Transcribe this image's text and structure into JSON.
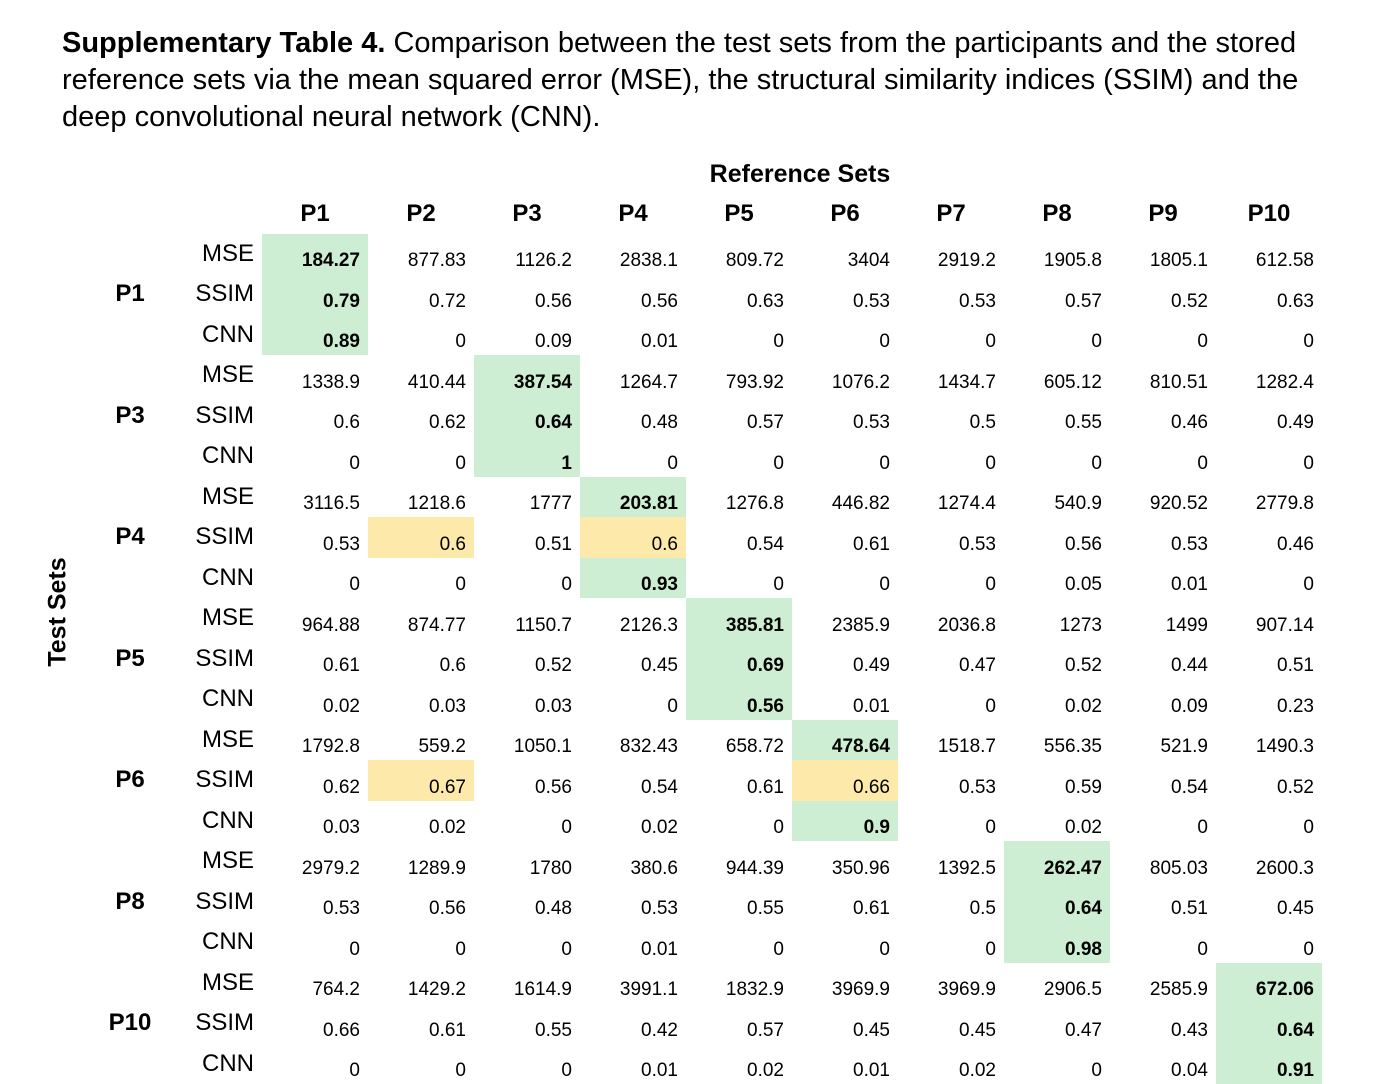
{
  "caption": {
    "label": "Supplementary Table 4.",
    "text": " Comparison between the test sets from the participants and the stored reference sets via the mean squared error (MSE), the structural similarity indices (SSIM) and the deep convolutional neural network (CNN)."
  },
  "ref_label": "Reference Sets",
  "test_label": "Test Sets",
  "columns": [
    "P1",
    "P2",
    "P3",
    "P4",
    "P5",
    "P6",
    "P7",
    "P8",
    "P9",
    "P10"
  ],
  "groups": [
    {
      "name": "P1",
      "rows": [
        {
          "metric": "MSE",
          "values": [
            "184.27",
            "877.83",
            "1126.2",
            "2838.1",
            "809.72",
            "3404",
            "2919.2",
            "1905.8",
            "1805.1",
            "612.58"
          ]
        },
        {
          "metric": "SSIM",
          "values": [
            "0.79",
            "0.72",
            "0.56",
            "0.56",
            "0.63",
            "0.53",
            "0.53",
            "0.57",
            "0.52",
            "0.63"
          ]
        },
        {
          "metric": "CNN",
          "values": [
            "0.89",
            "0",
            "0.09",
            "0.01",
            "0",
            "0",
            "0",
            "0",
            "0",
            "0"
          ]
        }
      ]
    },
    {
      "name": "P3",
      "rows": [
        {
          "metric": "MSE",
          "values": [
            "1338.9",
            "410.44",
            "387.54",
            "1264.7",
            "793.92",
            "1076.2",
            "1434.7",
            "605.12",
            "810.51",
            "1282.4"
          ]
        },
        {
          "metric": "SSIM",
          "values": [
            "0.6",
            "0.62",
            "0.64",
            "0.48",
            "0.57",
            "0.53",
            "0.5",
            "0.55",
            "0.46",
            "0.49"
          ]
        },
        {
          "metric": "CNN",
          "values": [
            "0",
            "0",
            "1",
            "0",
            "0",
            "0",
            "0",
            "0",
            "0",
            "0"
          ]
        }
      ]
    },
    {
      "name": "P4",
      "rows": [
        {
          "metric": "MSE",
          "values": [
            "3116.5",
            "1218.6",
            "1777",
            "203.81",
            "1276.8",
            "446.82",
            "1274.4",
            "540.9",
            "920.52",
            "2779.8"
          ]
        },
        {
          "metric": "SSIM",
          "values": [
            "0.53",
            "0.6",
            "0.51",
            "0.6",
            "0.54",
            "0.61",
            "0.53",
            "0.56",
            "0.53",
            "0.46"
          ]
        },
        {
          "metric": "CNN",
          "values": [
            "0",
            "0",
            "0",
            "0.93",
            "0",
            "0",
            "0",
            "0.05",
            "0.01",
            "0"
          ]
        }
      ]
    },
    {
      "name": "P5",
      "rows": [
        {
          "metric": "MSE",
          "values": [
            "964.88",
            "874.77",
            "1150.7",
            "2126.3",
            "385.81",
            "2385.9",
            "2036.8",
            "1273",
            "1499",
            "907.14"
          ]
        },
        {
          "metric": "SSIM",
          "values": [
            "0.61",
            "0.6",
            "0.52",
            "0.45",
            "0.69",
            "0.49",
            "0.47",
            "0.52",
            "0.44",
            "0.51"
          ]
        },
        {
          "metric": "CNN",
          "values": [
            "0.02",
            "0.03",
            "0.03",
            "0",
            "0.56",
            "0.01",
            "0",
            "0.02",
            "0.09",
            "0.23"
          ]
        }
      ]
    },
    {
      "name": "P6",
      "rows": [
        {
          "metric": "MSE",
          "values": [
            "1792.8",
            "559.2",
            "1050.1",
            "832.43",
            "658.72",
            "478.64",
            "1518.7",
            "556.35",
            "521.9",
            "1490.3"
          ]
        },
        {
          "metric": "SSIM",
          "values": [
            "0.62",
            "0.67",
            "0.56",
            "0.54",
            "0.61",
            "0.66",
            "0.53",
            "0.59",
            "0.54",
            "0.52"
          ]
        },
        {
          "metric": "CNN",
          "values": [
            "0.03",
            "0.02",
            "0",
            "0.02",
            "0",
            "0.9",
            "0",
            "0.02",
            "0",
            "0"
          ]
        }
      ]
    },
    {
      "name": "P8",
      "rows": [
        {
          "metric": "MSE",
          "values": [
            "2979.2",
            "1289.9",
            "1780",
            "380.6",
            "944.39",
            "350.96",
            "1392.5",
            "262.47",
            "805.03",
            "2600.3"
          ]
        },
        {
          "metric": "SSIM",
          "values": [
            "0.53",
            "0.56",
            "0.48",
            "0.53",
            "0.55",
            "0.61",
            "0.5",
            "0.64",
            "0.51",
            "0.45"
          ]
        },
        {
          "metric": "CNN",
          "values": [
            "0",
            "0",
            "0",
            "0.01",
            "0",
            "0",
            "0",
            "0.98",
            "0",
            "0"
          ]
        }
      ]
    },
    {
      "name": "P10",
      "rows": [
        {
          "metric": "MSE",
          "values": [
            "764.2",
            "1429.2",
            "1614.9",
            "3991.1",
            "1832.9",
            "3969.9",
            "3969.9",
            "2906.5",
            "2585.9",
            "672.06"
          ]
        },
        {
          "metric": "SSIM",
          "values": [
            "0.66",
            "0.61",
            "0.55",
            "0.42",
            "0.57",
            "0.45",
            "0.45",
            "0.47",
            "0.43",
            "0.64"
          ]
        },
        {
          "metric": "CNN",
          "values": [
            "0",
            "0",
            "0",
            "0.01",
            "0.02",
            "0.01",
            "0.02",
            "0",
            "0.04",
            "0.91"
          ]
        }
      ]
    }
  ],
  "highlights": {
    "green_bold": [
      [
        0,
        0,
        0
      ],
      [
        0,
        1,
        0
      ],
      [
        0,
        2,
        0
      ],
      [
        1,
        0,
        2
      ],
      [
        1,
        1,
        2
      ],
      [
        1,
        2,
        2
      ],
      [
        2,
        0,
        3
      ],
      [
        2,
        2,
        3
      ],
      [
        3,
        0,
        4
      ],
      [
        3,
        1,
        4
      ],
      [
        3,
        2,
        4
      ],
      [
        4,
        0,
        5
      ],
      [
        4,
        2,
        5
      ],
      [
        5,
        0,
        7
      ],
      [
        5,
        1,
        7
      ],
      [
        5,
        2,
        7
      ],
      [
        6,
        0,
        9
      ],
      [
        6,
        1,
        9
      ],
      [
        6,
        2,
        9
      ]
    ],
    "yellow": [
      [
        2,
        1,
        1
      ],
      [
        2,
        1,
        3
      ],
      [
        4,
        1,
        1
      ],
      [
        4,
        1,
        5
      ]
    ],
    "highlight_colors": {
      "green": "#cdeed2",
      "yellow": "#fde9a9"
    }
  }
}
